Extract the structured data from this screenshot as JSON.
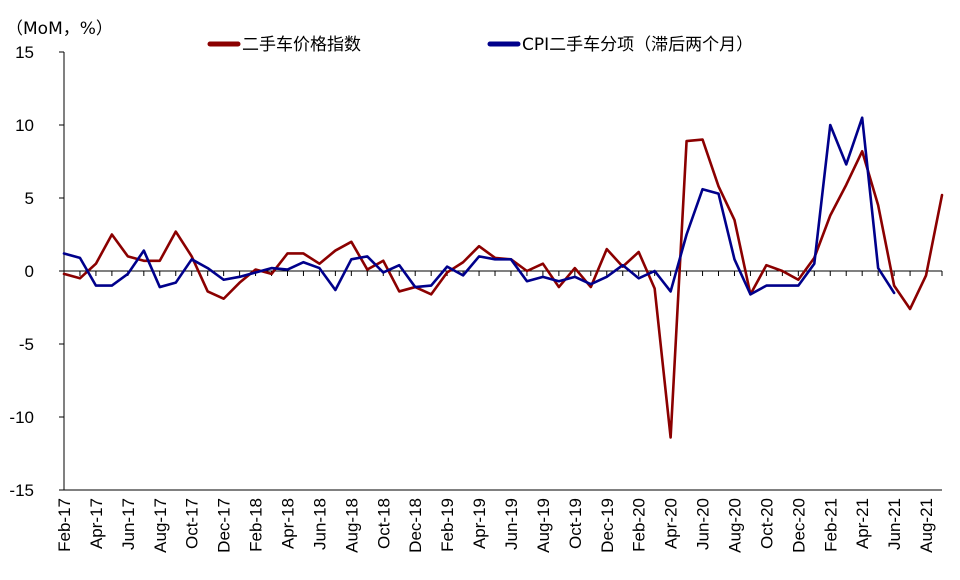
{
  "chart_data": {
    "type": "line",
    "unit_label": "（MoM，%）",
    "ylim": [
      -15,
      15
    ],
    "yticks": [
      15,
      10,
      5,
      0,
      -5,
      -10,
      -15
    ],
    "negative_tick_color": "#FF0000",
    "legend_position": "top",
    "grid": false,
    "x": [
      "Feb-17",
      "Mar-17",
      "Apr-17",
      "May-17",
      "Jun-17",
      "Jul-17",
      "Aug-17",
      "Sep-17",
      "Oct-17",
      "Nov-17",
      "Dec-17",
      "Jan-18",
      "Feb-18",
      "Mar-18",
      "Apr-18",
      "May-18",
      "Jun-18",
      "Jul-18",
      "Aug-18",
      "Sep-18",
      "Oct-18",
      "Nov-18",
      "Dec-18",
      "Jan-19",
      "Feb-19",
      "Mar-19",
      "Apr-19",
      "May-19",
      "Jun-19",
      "Jul-19",
      "Aug-19",
      "Sep-19",
      "Oct-19",
      "Nov-19",
      "Dec-19",
      "Jan-20",
      "Feb-20",
      "Mar-20",
      "Apr-20",
      "May-20",
      "Jun-20",
      "Jul-20",
      "Aug-20",
      "Sep-20",
      "Oct-20",
      "Nov-20",
      "Dec-20",
      "Jan-21",
      "Feb-21",
      "Mar-21",
      "Apr-21",
      "May-21",
      "Jun-21",
      "Jul-21",
      "Aug-21",
      "Sep-21"
    ],
    "xtick_labels": [
      "Feb-17",
      "Apr-17",
      "Jun-17",
      "Aug-17",
      "Oct-17",
      "Dec-17",
      "Feb-18",
      "Apr-18",
      "Jun-18",
      "Aug-18",
      "Oct-18",
      "Dec-18",
      "Feb-19",
      "Apr-19",
      "Jun-19",
      "Aug-19",
      "Oct-19",
      "Dec-19",
      "Feb-20",
      "Apr-20",
      "Jun-20",
      "Aug-20",
      "Oct-20",
      "Dec-20",
      "Feb-21",
      "Apr-21",
      "Jun-21",
      "Aug-21"
    ],
    "series": [
      {
        "name": "二手车价格指数",
        "color": "#8B0000",
        "values": [
          -0.2,
          -0.5,
          0.5,
          2.5,
          1.0,
          0.7,
          0.7,
          2.7,
          1.0,
          -1.4,
          -1.9,
          -0.8,
          0.1,
          -0.2,
          1.2,
          1.2,
          0.5,
          1.4,
          2.0,
          0.1,
          0.7,
          -1.4,
          -1.1,
          -1.6,
          -0.1,
          0.6,
          1.7,
          0.9,
          0.8,
          0.0,
          0.5,
          -1.1,
          0.2,
          -1.1,
          1.5,
          0.3,
          1.3,
          -1.2,
          -11.4,
          8.9,
          9.0,
          5.8,
          3.5,
          -1.6,
          0.4,
          0.0,
          -0.6,
          0.9,
          3.8,
          5.9,
          8.2,
          4.5,
          -1.0,
          -2.6,
          -0.3,
          5.2
        ]
      },
      {
        "name": "CPI二手车分项（滞后两个月）",
        "color": "#00008B",
        "values": [
          1.2,
          0.9,
          -1.0,
          -1.0,
          -0.2,
          1.4,
          -1.1,
          -0.8,
          0.8,
          0.2,
          -0.6,
          -0.4,
          -0.1,
          0.2,
          0.1,
          0.6,
          0.2,
          -1.3,
          0.8,
          1.0,
          -0.1,
          0.4,
          -1.1,
          -1.0,
          0.3,
          -0.3,
          1.0,
          0.8,
          0.8,
          -0.7,
          -0.4,
          -0.7,
          -0.4,
          -0.9,
          -0.4,
          0.4,
          -0.5,
          0.0,
          -1.4,
          2.5,
          5.6,
          5.3,
          0.8,
          -1.6,
          -1.0,
          -1.0,
          -1.0,
          0.5,
          10.0,
          7.3,
          10.5,
          0.2,
          -1.5,
          null,
          null,
          null
        ]
      }
    ]
  }
}
